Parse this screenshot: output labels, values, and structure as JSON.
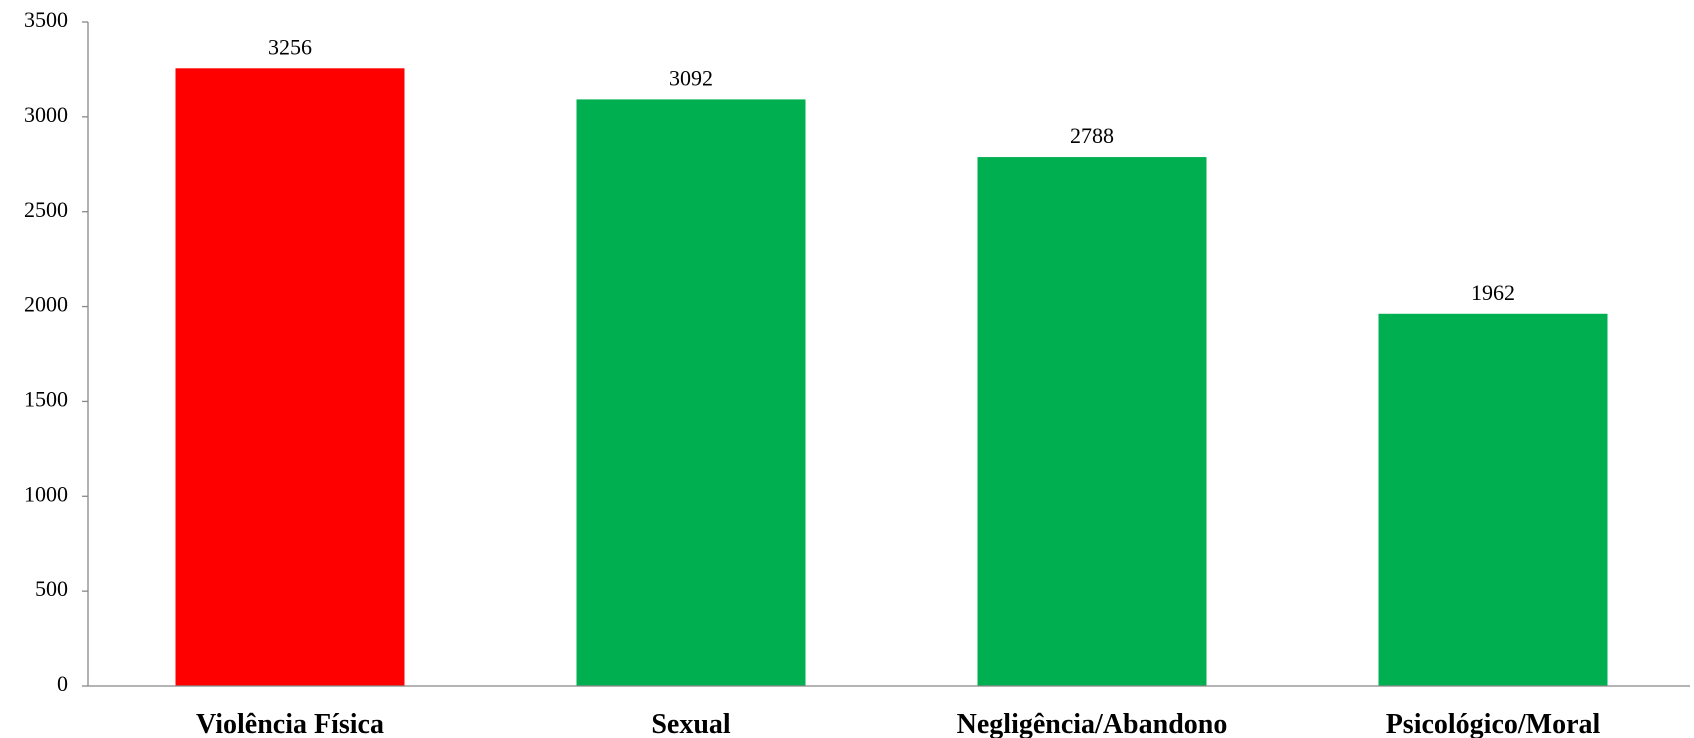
{
  "chart_data": {
    "type": "bar",
    "categories": [
      "Violência Física",
      "Sexual",
      "Negligência/Abandono",
      "Psicológico/Moral"
    ],
    "values": [
      3256,
      3092,
      2788,
      1962
    ],
    "data_labels": [
      "3256",
      "3092",
      "2788",
      "1962"
    ],
    "bar_colors": [
      "#ff0000",
      "#00b050",
      "#00b050",
      "#00b050"
    ],
    "ylim": [
      0,
      3500
    ],
    "yticks": [
      0,
      500,
      1000,
      1500,
      2000,
      2500,
      3000,
      3500
    ],
    "ytick_labels": [
      "0",
      "500",
      "1000",
      "1500",
      "2000",
      "2500",
      "3000",
      "3500"
    ],
    "title": "",
    "xlabel": "",
    "ylabel": "",
    "grid": false,
    "legend": "none"
  }
}
